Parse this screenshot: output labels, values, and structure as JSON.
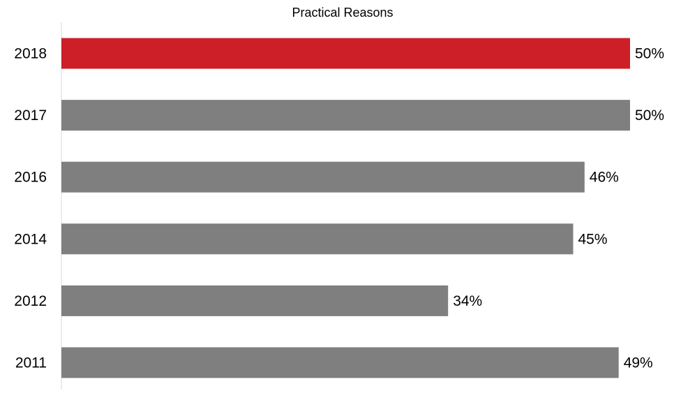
{
  "chart_data": {
    "type": "bar",
    "orientation": "horizontal",
    "title": "Practical Reasons",
    "xlabel": "",
    "ylabel": "",
    "categories": [
      "2018",
      "2017",
      "2016",
      "2014",
      "2012",
      "2011"
    ],
    "values": [
      50,
      50,
      46,
      45,
      34,
      49
    ],
    "value_labels": [
      "50%",
      "50%",
      "46%",
      "45%",
      "34%",
      "49%"
    ],
    "highlight_category": "2018",
    "colors": {
      "highlight": "#cc1f28",
      "default": "#7f7f7f",
      "axis": "#d9d9d9",
      "text": "#000000"
    },
    "xlim": [
      0,
      50
    ],
    "grid": false,
    "legend": "none"
  }
}
